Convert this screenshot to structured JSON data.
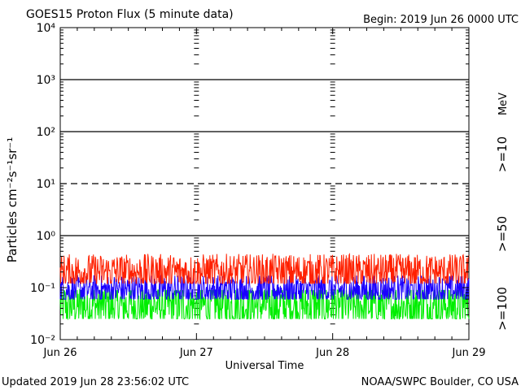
{
  "header": {
    "title": "GOES15 Proton Flux (5 minute data)",
    "begin": "Begin: 2019 Jun 26 0000 UTC"
  },
  "footer": {
    "updated": "Updated 2019 Jun 28 23:56:02 UTC",
    "credit": "NOAA/SWPC Boulder, CO USA"
  },
  "chart_data": {
    "type": "line",
    "title": "GOES15 Proton Flux (5 minute data)",
    "xlabel": "Universal Time",
    "ylabel": "Particles cm⁻²s⁻¹sr⁻¹",
    "y_scale": "log",
    "ylim": [
      0.01,
      10000
    ],
    "y_ticks": [
      {
        "value": 0.01,
        "label": "10⁻²"
      },
      {
        "value": 0.1,
        "label": "10⁻¹"
      },
      {
        "value": 1,
        "label": "10⁰"
      },
      {
        "value": 10,
        "label": "10¹"
      },
      {
        "value": 100,
        "label": "10²"
      },
      {
        "value": 1000,
        "label": "10³"
      },
      {
        "value": 10000,
        "label": "10⁴"
      }
    ],
    "x_ticks": [
      "Jun 26",
      "Jun 27",
      "Jun 28",
      "Jun 29"
    ],
    "xlim_days": [
      0,
      3
    ],
    "threshold_lines": [
      {
        "value": 10,
        "style": "dashed"
      },
      {
        "value": 100,
        "style": "solid"
      },
      {
        "value": 1000,
        "style": "solid"
      },
      {
        "value": 1,
        "style": "solid"
      }
    ],
    "unit_label": "MeV",
    "series": [
      {
        "name": ">=10",
        "color": "#ff2000",
        "base": 0.2,
        "spread": 0.7,
        "min": 0.12,
        "max": 0.55
      },
      {
        "name": ">=50",
        "color": "#1a00ff",
        "base": 0.09,
        "spread": 0.6,
        "min": 0.06,
        "max": 0.17
      },
      {
        "name": ">=100",
        "color": "#00ee00",
        "base": 0.045,
        "spread": 0.9,
        "min": 0.025,
        "max": 0.09
      }
    ]
  }
}
